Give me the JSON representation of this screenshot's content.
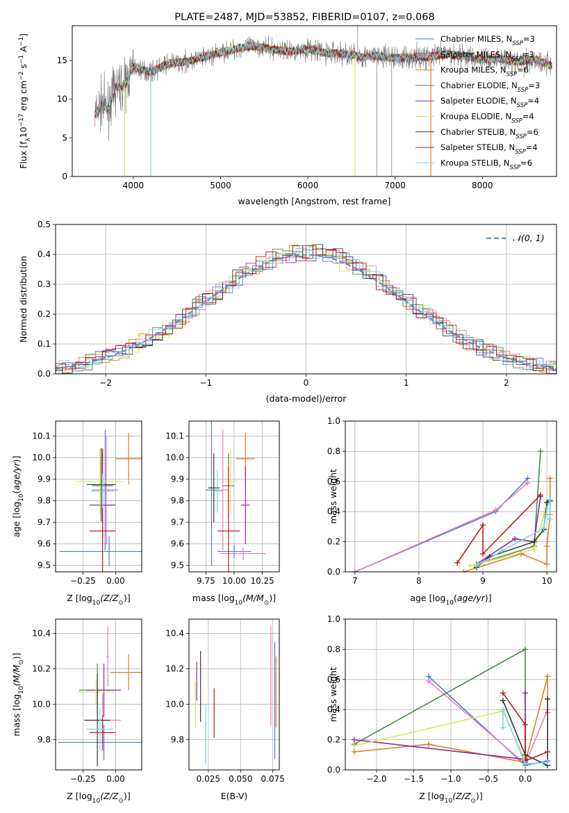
{
  "chart_data": [
    {
      "id": "spectrum",
      "type": "line",
      "title": "PLATE=2487, MJD=53852, FIBERID=0107, z=0.068",
      "xlabel": "wavelength [Angstrom, rest frame]",
      "ylabel_parts": [
        "Flux [f",
        "λ",
        "10",
        "−17",
        " erg cm",
        "−2",
        " s",
        "−1",
        " A",
        "−1",
        "]"
      ],
      "xlim": [
        3300,
        8850
      ],
      "ylim": [
        0,
        19.5
      ],
      "xticks": [
        4000,
        5000,
        6000,
        7000,
        8000
      ],
      "yticks": [
        0,
        5,
        10,
        15
      ],
      "xtick_labels": [
        "4000",
        "5000",
        "6000",
        "7000",
        "8000"
      ],
      "ytick_labels": [
        "0",
        "5",
        "10",
        "15"
      ],
      "grid": false,
      "legend_position": "top-right",
      "data_x_range": [
        3560,
        8800
      ],
      "legend": [
        {
          "label": "Chabrier MILES, N",
          "sub": "SSP",
          "suffix": "=3",
          "color": "#4e7ad6"
        },
        {
          "label": "Salpeter MILES, N",
          "sub": "SSP",
          "suffix": "=3",
          "color": "#e87fb8"
        },
        {
          "label": "Kroupa MILES, N",
          "sub": "SSP",
          "suffix": "=6",
          "color": "#e07a24"
        },
        {
          "label": "Chabrier ELODIE, N",
          "sub": "SSP",
          "suffix": "=3",
          "color": "#4a8a4a"
        },
        {
          "label": "Salpeter ELODIE, N",
          "sub": "SSP",
          "suffix": "=4",
          "color": "#8a2a9e"
        },
        {
          "label": "Kroupa ELODIE, N",
          "sub": "SSP",
          "suffix": "=4",
          "color": "#d6e85a"
        },
        {
          "label": "Chabrier STELIB, N",
          "sub": "SSP",
          "suffix": "=6",
          "color": "#333333"
        },
        {
          "label": "Salpeter STELIB, N",
          "sub": "SSP",
          "suffix": "=4",
          "color": "#c01818"
        },
        {
          "label": "Kroupa STELIB, N",
          "sub": "SSP",
          "suffix": "=6",
          "color": "#7ad6e0"
        }
      ],
      "continuum": {
        "x": [
          3560,
          3650,
          3700,
          3800,
          3900,
          4000,
          4100,
          4200,
          4400,
          4600,
          4800,
          5000,
          5200,
          5400,
          5600,
          5800,
          6000,
          6200,
          6400,
          6600,
          6800,
          7000,
          7200,
          7400,
          7600,
          7800,
          8000,
          8200,
          8400,
          8600,
          8800
        ],
        "y": [
          8.0,
          9.5,
          8.5,
          11.5,
          11.8,
          14.2,
          13.8,
          13.5,
          14.6,
          14.8,
          15.4,
          16.0,
          16.6,
          16.9,
          16.4,
          16.2,
          16.5,
          16.0,
          15.9,
          15.5,
          15.6,
          15.3,
          15.4,
          15.5,
          15.8,
          15.6,
          15.1,
          15.3,
          14.8,
          15.2,
          14.3
        ]
      },
      "drop_lines": [
        {
          "x": 3900,
          "y_low": 0,
          "color": "#d6e85a"
        },
        {
          "x": 4200,
          "y_low": 0,
          "color": "#7ad6e0"
        },
        {
          "x": 6540,
          "y_low": 0,
          "color": "#d6e85a"
        },
        {
          "x": 6790,
          "y_low": 0,
          "color": "#aaaaaa"
        },
        {
          "x": 6960,
          "y_low": 0,
          "color": "#aaaaaa"
        },
        {
          "x": 7410,
          "y_low": 0,
          "color": "#e07a24"
        }
      ],
      "spike_lines": [
        {
          "x": 6570,
          "y_high": 19.5,
          "color": "#aaaaaa"
        }
      ]
    },
    {
      "id": "residual",
      "type": "line",
      "xlabel": "(data-model)/error",
      "ylabel": "Normed distribution",
      "xlim": [
        -2.5,
        2.5
      ],
      "ylim": [
        0,
        0.5
      ],
      "xticks": [
        -2,
        -1,
        0,
        1,
        2
      ],
      "yticks": [
        0,
        0.1,
        0.2,
        0.3,
        0.4,
        0.5
      ],
      "xtick_labels": [
        "−2",
        "−1",
        "0",
        "1",
        "2"
      ],
      "ytick_labels": [
        "0.0",
        "0.1",
        "0.2",
        "0.3",
        "0.4",
        "0.5"
      ],
      "grid": true,
      "legend_position": "top-right",
      "legend": [
        {
          "label": "𝒩(0, 1)",
          "color": "#5a8fd6",
          "style": "dashed"
        }
      ],
      "normal": {
        "mean": 0,
        "sd": 1,
        "color": "#5a8fd6"
      },
      "bin_width": 0.1,
      "hist_colors": [
        "#4e7ad6",
        "#e87fb8",
        "#e07a24",
        "#4a8a4a",
        "#8a2a9e",
        "#d6e85a",
        "#333333",
        "#c01818",
        "#7ad6e0"
      ]
    },
    {
      "id": "Z_age",
      "type": "scatter",
      "xlabel_parts": [
        "Z [log",
        "10",
        "(Z/Z",
        "⊙",
        ")]"
      ],
      "ylabel_parts": [
        "age  [log",
        "10",
        "(",
        "age/yr",
        ")]"
      ],
      "xlim": [
        -0.46,
        0.2
      ],
      "ylim": [
        9.47,
        10.17
      ],
      "xticks": [
        -0.25,
        0.0
      ],
      "yticks": [
        9.5,
        9.6,
        9.7,
        9.8,
        9.9,
        10.0,
        10.1
      ],
      "xtick_labels": [
        "−0.25",
        "0.00"
      ],
      "ytick_labels": [
        "9.5",
        "9.6",
        "9.7",
        "9.8",
        "9.9",
        "10.0",
        "10.1"
      ],
      "grid": true,
      "points": [
        {
          "x": -0.05,
          "y": 9.565,
          "xerr": 0.38,
          "yerr": 0.07,
          "color": "#4e7ad6"
        },
        {
          "x": -0.08,
          "y": 9.85,
          "xerr": 0.1,
          "yerr": 0.28,
          "color": "#4e7ad6"
        },
        {
          "x": -0.07,
          "y": 9.85,
          "xerr": 0.09,
          "yerr": 0.25,
          "color": "#e87fb8"
        },
        {
          "x": 0.1,
          "y": 9.995,
          "xerr": 0.1,
          "yerr": 0.12,
          "color": "#e07a24"
        },
        {
          "x": -0.1,
          "y": 9.87,
          "xerr": 0.08,
          "yerr": 0.15,
          "color": "#4a8a4a"
        },
        {
          "x": -0.1,
          "y": 9.78,
          "xerr": 0.1,
          "yerr": 0.15,
          "color": "#8a2a9e"
        },
        {
          "x": -0.12,
          "y": 9.89,
          "xerr": 0.19,
          "yerr": 0.15,
          "color": "#d6e85a"
        },
        {
          "x": -0.11,
          "y": 9.875,
          "xerr": 0.11,
          "yerr": 0.17,
          "color": "#333333"
        },
        {
          "x": -0.1,
          "y": 9.66,
          "xerr": 0.1,
          "yerr": 0.38,
          "color": "#c01818"
        },
        {
          "x": -0.1,
          "y": 9.845,
          "xerr": 0.09,
          "yerr": 0.08,
          "color": "#7ad6e0"
        }
      ]
    },
    {
      "id": "mass_age",
      "type": "scatter",
      "xlabel_parts": [
        "mass [log",
        "10",
        "(M/M",
        "⊙",
        ")]"
      ],
      "xlim": [
        9.6,
        10.4
      ],
      "ylim": [
        9.47,
        10.17
      ],
      "xticks": [
        9.75,
        10.0,
        10.25
      ],
      "yticks": [
        9.5,
        9.6,
        9.7,
        9.8,
        9.9,
        10.0,
        10.1
      ],
      "xtick_labels": [
        "9.75",
        "10.00",
        "10.25"
      ],
      "ytick_labels": [
        "9.5",
        "9.6",
        "9.7",
        "9.8",
        "9.9",
        "10.0",
        "10.1"
      ],
      "grid": true,
      "points": [
        {
          "x": 10.0,
          "y": 9.565,
          "xerr": 0.15,
          "yerr": 0.03,
          "color": "#4e7ad6"
        },
        {
          "x": 9.8,
          "y": 9.85,
          "xerr": 0.05,
          "yerr": 0.35,
          "color": "#4e7ad6"
        },
        {
          "x": 10.08,
          "y": 9.555,
          "xerr": 0.2,
          "yerr": 0.03,
          "color": "#e87fb8"
        },
        {
          "x": 9.9,
          "y": 9.85,
          "xerr": 0.05,
          "yerr": 0.28,
          "color": "#e87fb8"
        },
        {
          "x": 10.1,
          "y": 9.995,
          "xerr": 0.08,
          "yerr": 0.12,
          "color": "#e07a24"
        },
        {
          "x": 9.95,
          "y": 9.87,
          "xerr": 0.05,
          "yerr": 0.15,
          "color": "#4a8a4a"
        },
        {
          "x": 10.1,
          "y": 9.78,
          "xerr": 0.04,
          "yerr": 0.18,
          "color": "#8a2a9e"
        },
        {
          "x": 9.97,
          "y": 9.89,
          "xerr": 0.06,
          "yerr": 0.15,
          "color": "#d6e85a"
        },
        {
          "x": 9.82,
          "y": 9.86,
          "xerr": 0.05,
          "yerr": 0.16,
          "color": "#333333"
        },
        {
          "x": 9.95,
          "y": 9.66,
          "xerr": 0.1,
          "yerr": 0.3,
          "color": "#c01818"
        },
        {
          "x": 9.85,
          "y": 9.845,
          "xerr": 0.05,
          "yerr": 0.1,
          "color": "#7ad6e0"
        }
      ]
    },
    {
      "id": "age_weight",
      "type": "line",
      "xlabel_parts": [
        "age  [log",
        "10",
        "(",
        "age/yr",
        ")]"
      ],
      "ylabel": "mass weight",
      "xlim": [
        6.85,
        10.15
      ],
      "ylim": [
        0,
        1.0
      ],
      "xticks": [
        7,
        8,
        9,
        10
      ],
      "yticks": [
        0.0,
        0.2,
        0.4,
        0.6,
        0.8,
        1.0
      ],
      "xtick_labels": [
        "7",
        "8",
        "9",
        "10"
      ],
      "ytick_labels": [
        "0.0",
        "0.2",
        "0.4",
        "0.6",
        "0.8",
        "1.0"
      ],
      "grid": true,
      "series": [
        {
          "color": "#4e7ad6",
          "x": [
            7.0,
            9.2,
            9.7
          ],
          "y": [
            0.0,
            0.4,
            0.62
          ]
        },
        {
          "color": "#e87fb8",
          "x": [
            7.0,
            9.2,
            9.7
          ],
          "y": [
            0.0,
            0.41,
            0.59
          ]
        },
        {
          "color": "#e07a24",
          "x": [
            8.7,
            9.6,
            10.0,
            10.0,
            10.05,
            10.05
          ],
          "y": [
            0.0,
            0.12,
            0.05,
            0.17,
            0.38,
            0.62
          ]
        },
        {
          "color": "#4a8a4a",
          "x": [
            8.9,
            9.8,
            9.9
          ],
          "y": [
            0.05,
            0.17,
            0.8
          ]
        },
        {
          "color": "#8a2a9e",
          "x": [
            8.9,
            9.5,
            9.8,
            9.9
          ],
          "y": [
            0.05,
            0.22,
            0.2,
            0.5
          ]
        },
        {
          "color": "#d6e85a",
          "x": [
            8.8,
            9.8,
            9.95,
            10.0
          ],
          "y": [
            0.04,
            0.15,
            0.38,
            0.45
          ]
        },
        {
          "color": "#333333",
          "x": [
            8.9,
            9.1,
            9.8,
            9.95,
            10.0,
            10.05
          ],
          "y": [
            0.03,
            0.1,
            0.2,
            0.28,
            0.46,
            0.47
          ]
        },
        {
          "color": "#c01818",
          "x": [
            8.6,
            9.0,
            9.0,
            9.9
          ],
          "y": [
            0.06,
            0.31,
            0.12,
            0.51
          ]
        },
        {
          "color": "#7ad6e0",
          "x": [
            8.9,
            9.3,
            9.95,
            10.0,
            10.05,
            10.05
          ],
          "y": [
            0.04,
            0.14,
            0.29,
            0.42,
            0.48,
            0.35
          ]
        }
      ]
    },
    {
      "id": "Z_mass",
      "type": "scatter",
      "xlabel_parts": [
        "Z [log",
        "10",
        "(Z/Z",
        "⊙",
        ")]"
      ],
      "ylabel_parts": [
        "mass [log",
        "10",
        "(M/M",
        "⊙",
        ")]"
      ],
      "xlim": [
        -0.46,
        0.2
      ],
      "ylim": [
        9.63,
        10.48
      ],
      "xticks": [
        -0.25,
        0.0
      ],
      "yticks": [
        9.8,
        10.0,
        10.2,
        10.4
      ],
      "xtick_labels": [
        "−0.25",
        "0.00"
      ],
      "ytick_labels": [
        "9.8",
        "10.0",
        "10.2",
        "10.4"
      ],
      "grid": true,
      "points": [
        {
          "x": -0.09,
          "y": 9.785,
          "xerr": 0.35,
          "yerr": 0.1,
          "color": "#4e7ad6"
        },
        {
          "x": -0.1,
          "y": 9.91,
          "xerr": 0.14,
          "yerr": 0.15,
          "color": "#e87fb8"
        },
        {
          "x": -0.06,
          "y": 10.27,
          "xerr": 0.01,
          "yerr": 0.17,
          "color": "#e87fb8"
        },
        {
          "x": 0.1,
          "y": 10.18,
          "xerr": 0.14,
          "yerr": 0.1,
          "color": "#e07a24"
        },
        {
          "x": -0.14,
          "y": 10.08,
          "xerr": 0.14,
          "yerr": 0.15,
          "color": "#4a8a4a"
        },
        {
          "x": -0.09,
          "y": 10.08,
          "xerr": 0.13,
          "yerr": 0.15,
          "color": "#8a2a9e"
        },
        {
          "x": -0.15,
          "y": 10.07,
          "xerr": 0.14,
          "yerr": 0.07,
          "color": "#d6e85a"
        },
        {
          "x": -0.14,
          "y": 9.91,
          "xerr": 0.1,
          "yerr": 0.26,
          "color": "#333333"
        },
        {
          "x": -0.1,
          "y": 9.84,
          "xerr": 0.1,
          "yerr": 0.1,
          "color": "#c01818"
        },
        {
          "x": -0.12,
          "y": 9.86,
          "xerr": 0.1,
          "yerr": 0.12,
          "color": "#7ad6e0"
        }
      ]
    },
    {
      "id": "ebv_mass",
      "type": "scatter",
      "xlabel": "E(B-V)",
      "xlim": [
        0.01,
        0.08
      ],
      "ylim": [
        9.63,
        10.48
      ],
      "xticks": [
        0.025,
        0.05,
        0.075
      ],
      "yticks": [
        9.8,
        10.0,
        10.2,
        10.4
      ],
      "xtick_labels": [
        "0.025",
        "0.050",
        "0.075"
      ],
      "ytick_labels": [
        "9.8",
        "10.0",
        "10.2",
        "10.4"
      ],
      "grid": true,
      "points": [
        {
          "x": 0.0765,
          "y": 10.02,
          "xerr": 0,
          "yerr": 0.33,
          "color": "#4e7ad6"
        },
        {
          "x": 0.0735,
          "y": 10.16,
          "xerr": 0,
          "yerr": 0.28,
          "color": "#e87fb8"
        },
        {
          "x": 0.0775,
          "y": 10.07,
          "xerr": 0,
          "yerr": 0.2,
          "color": "#e07a24"
        },
        {
          "x": 0.016,
          "y": 10.13,
          "xerr": 0,
          "yerr": 0.11,
          "color": "#8a2a9e"
        },
        {
          "x": 0.015,
          "y": 10.0,
          "xerr": 0,
          "yerr": 0.13,
          "color": "#d6e85a"
        },
        {
          "x": 0.019,
          "y": 10.1,
          "xerr": 0,
          "yerr": 0.2,
          "color": "#333333"
        },
        {
          "x": 0.0295,
          "y": 9.95,
          "xerr": 0,
          "yerr": 0.14,
          "color": "#c01818"
        },
        {
          "x": 0.023,
          "y": 9.83,
          "xerr": 0,
          "yerr": 0.17,
          "color": "#7ad6e0"
        }
      ]
    },
    {
      "id": "Z_weight",
      "type": "line",
      "xlabel_parts": [
        "Z [log",
        "10",
        "(Z/Z",
        "⊙",
        ")]"
      ],
      "ylabel": "mass weight",
      "xlim": [
        -2.42,
        0.42
      ],
      "ylim": [
        0,
        1.0
      ],
      "xticks": [
        -2.0,
        -1.5,
        -1.0,
        -0.5,
        0.0
      ],
      "yticks": [
        0.0,
        0.2,
        0.4,
        0.6,
        0.8,
        1.0
      ],
      "xtick_labels": [
        "−2.0",
        "−1.5",
        "−1.0",
        "−0.5",
        "0.0"
      ],
      "ytick_labels": [
        "0.0",
        "0.2",
        "0.4",
        "0.6",
        "0.8",
        "1.0"
      ],
      "grid": true,
      "series": [
        {
          "color": "#4e7ad6",
          "x": [
            -1.3,
            0.0,
            0.3
          ],
          "y": [
            0.62,
            0.03,
            0.06
          ]
        },
        {
          "color": "#e87fb8",
          "x": [
            -1.3,
            0.0,
            0.3
          ],
          "y": [
            0.59,
            0.04,
            0.4
          ]
        },
        {
          "color": "#e07a24",
          "x": [
            -2.3,
            -1.3,
            0.0,
            0.3,
            0.3
          ],
          "y": [
            0.12,
            0.17,
            0.05,
            0.62,
            0.38
          ]
        },
        {
          "color": "#4a8a4a",
          "x": [
            -2.3,
            0.0,
            0.0
          ],
          "y": [
            0.17,
            0.8,
            0.05
          ]
        },
        {
          "color": "#8a2a9e",
          "x": [
            -2.3,
            0.0,
            0.0
          ],
          "y": [
            0.2,
            0.07,
            0.51
          ]
        },
        {
          "color": "#d6e85a",
          "x": [
            -2.3,
            -0.3,
            0.0
          ],
          "y": [
            0.16,
            0.39,
            0.06
          ]
        },
        {
          "color": "#333333",
          "x": [
            -0.3,
            0.0,
            0.3,
            0.3
          ],
          "y": [
            0.46,
            0.1,
            0.03,
            0.47
          ]
        },
        {
          "color": "#c01818",
          "x": [
            -0.3,
            0.0,
            0.0,
            0.3
          ],
          "y": [
            0.51,
            0.3,
            0.06,
            0.12
          ]
        },
        {
          "color": "#7ad6e0",
          "x": [
            -0.3,
            -0.3,
            0.0,
            0.3
          ],
          "y": [
            0.28,
            0.4,
            0.04,
            0.05
          ]
        }
      ]
    }
  ]
}
